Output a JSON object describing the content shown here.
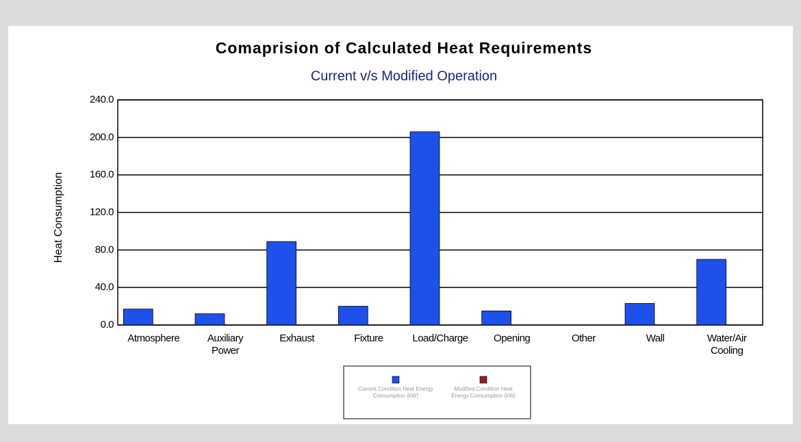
{
  "chart_data": {
    "type": "bar",
    "title": "Comaprision of Calculated Heat Requirements",
    "subtitle": "Current v/s Modified Operation",
    "y_label": "Heat Consumption",
    "categories": [
      "Atmosphere",
      "Auxiliary Power",
      "Exhaust",
      "Fixture",
      "Load/Charge",
      "Opening",
      "Other",
      "Wall",
      "Water/Air Cooling"
    ],
    "series": [
      {
        "name": "Current Condition Heat Energy Consumption (kW)",
        "color": "#1e50ec",
        "values": [
          17,
          12,
          89,
          20,
          206,
          15,
          0,
          23,
          70
        ]
      },
      {
        "name": "Modified Condition Heat Energy Consumption (kW)",
        "color": "#9b1c1c",
        "values": [
          0,
          0,
          0,
          0,
          0,
          0,
          0,
          0,
          0
        ]
      }
    ],
    "ylim": [
      0,
      240
    ],
    "yticks": [
      {
        "value": 0,
        "label": "0.0"
      },
      {
        "value": 40,
        "label": "40.0"
      },
      {
        "value": 80,
        "label": "80.0"
      },
      {
        "value": 120,
        "label": "120.0"
      },
      {
        "value": 160,
        "label": "160.0"
      },
      {
        "value": 200,
        "label": "200.0"
      },
      {
        "value": 240,
        "label": "240.0"
      }
    ],
    "grid": true,
    "legend": "bottom"
  }
}
